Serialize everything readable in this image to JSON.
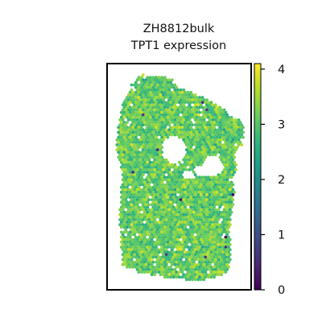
{
  "chart_data": {
    "type": "heatmap",
    "title_lines": [
      "ZH8812bulk",
      "TPT1 expression"
    ],
    "xlabel": "",
    "ylabel": "",
    "colorbar": {
      "colormap": "viridis",
      "range": [
        0,
        4.1
      ],
      "ticks": [
        0,
        1,
        2,
        3,
        4
      ],
      "tick_labels": [
        "0",
        "1",
        "2",
        "3",
        "4"
      ],
      "placement": "right"
    },
    "values_summary": {
      "typical_range": [
        2.3,
        4.0
      ],
      "typical_center": 3.1,
      "sparse_low_spots": true
    },
    "frame": true,
    "grid": false
  },
  "colors": {
    "viridis_stops": [
      "#440154",
      "#482878",
      "#3e4989",
      "#31688e",
      "#26828e",
      "#1f9e89",
      "#35b779",
      "#6ece58",
      "#b5de2b",
      "#fde725"
    ]
  }
}
